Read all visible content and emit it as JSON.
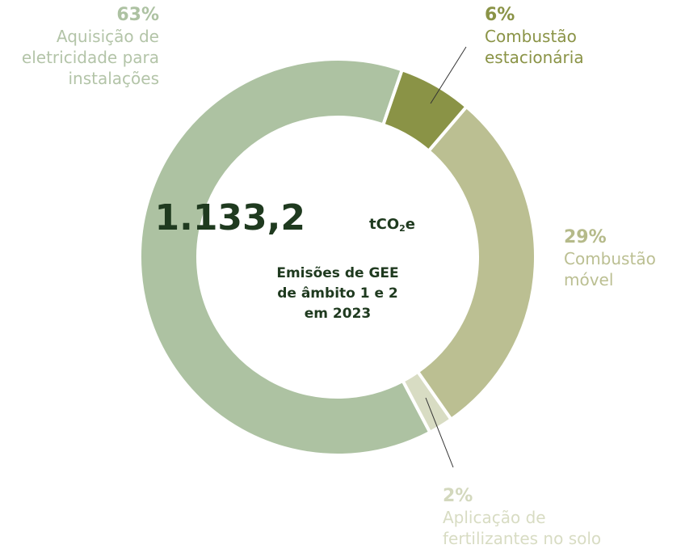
{
  "chart_data": {
    "type": "donut",
    "categories": [
      "Combustão\nestacionária",
      "Combustão\nmóvel",
      "Aplicação de\nfertilizantes no solo",
      "Aquisição de\neletricidade para\ninstalações"
    ],
    "values": [
      6,
      29,
      2,
      63
    ],
    "value_labels": [
      "6%",
      "29%",
      "2%",
      "63%"
    ],
    "colors": [
      "#8a9346",
      "#bbbf92",
      "#d8dcc3",
      "#adc2a2"
    ],
    "center_value": "1.133,2",
    "center_unit": "tCO",
    "center_unit_sub": "2",
    "center_unit_tail": "e",
    "center_text": [
      "Emisões de GEE",
      "de âmbito 1 e 2",
      "em 2023"
    ]
  }
}
